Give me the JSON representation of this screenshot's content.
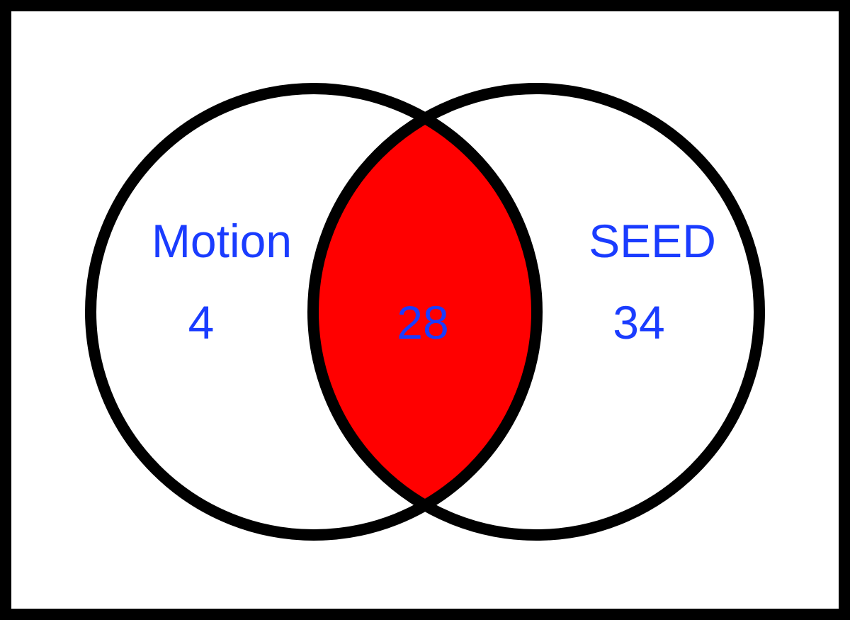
{
  "venn": {
    "sets": [
      {
        "label": "Motion",
        "count": "4"
      },
      {
        "label": "SEED",
        "count": "34"
      }
    ],
    "intersection": {
      "count": "28"
    }
  },
  "colors": {
    "frame": "#000000",
    "background": "#ffffff",
    "outline": "#000000",
    "intersection_fill": "#ff0000",
    "text": "#1a3cff"
  }
}
